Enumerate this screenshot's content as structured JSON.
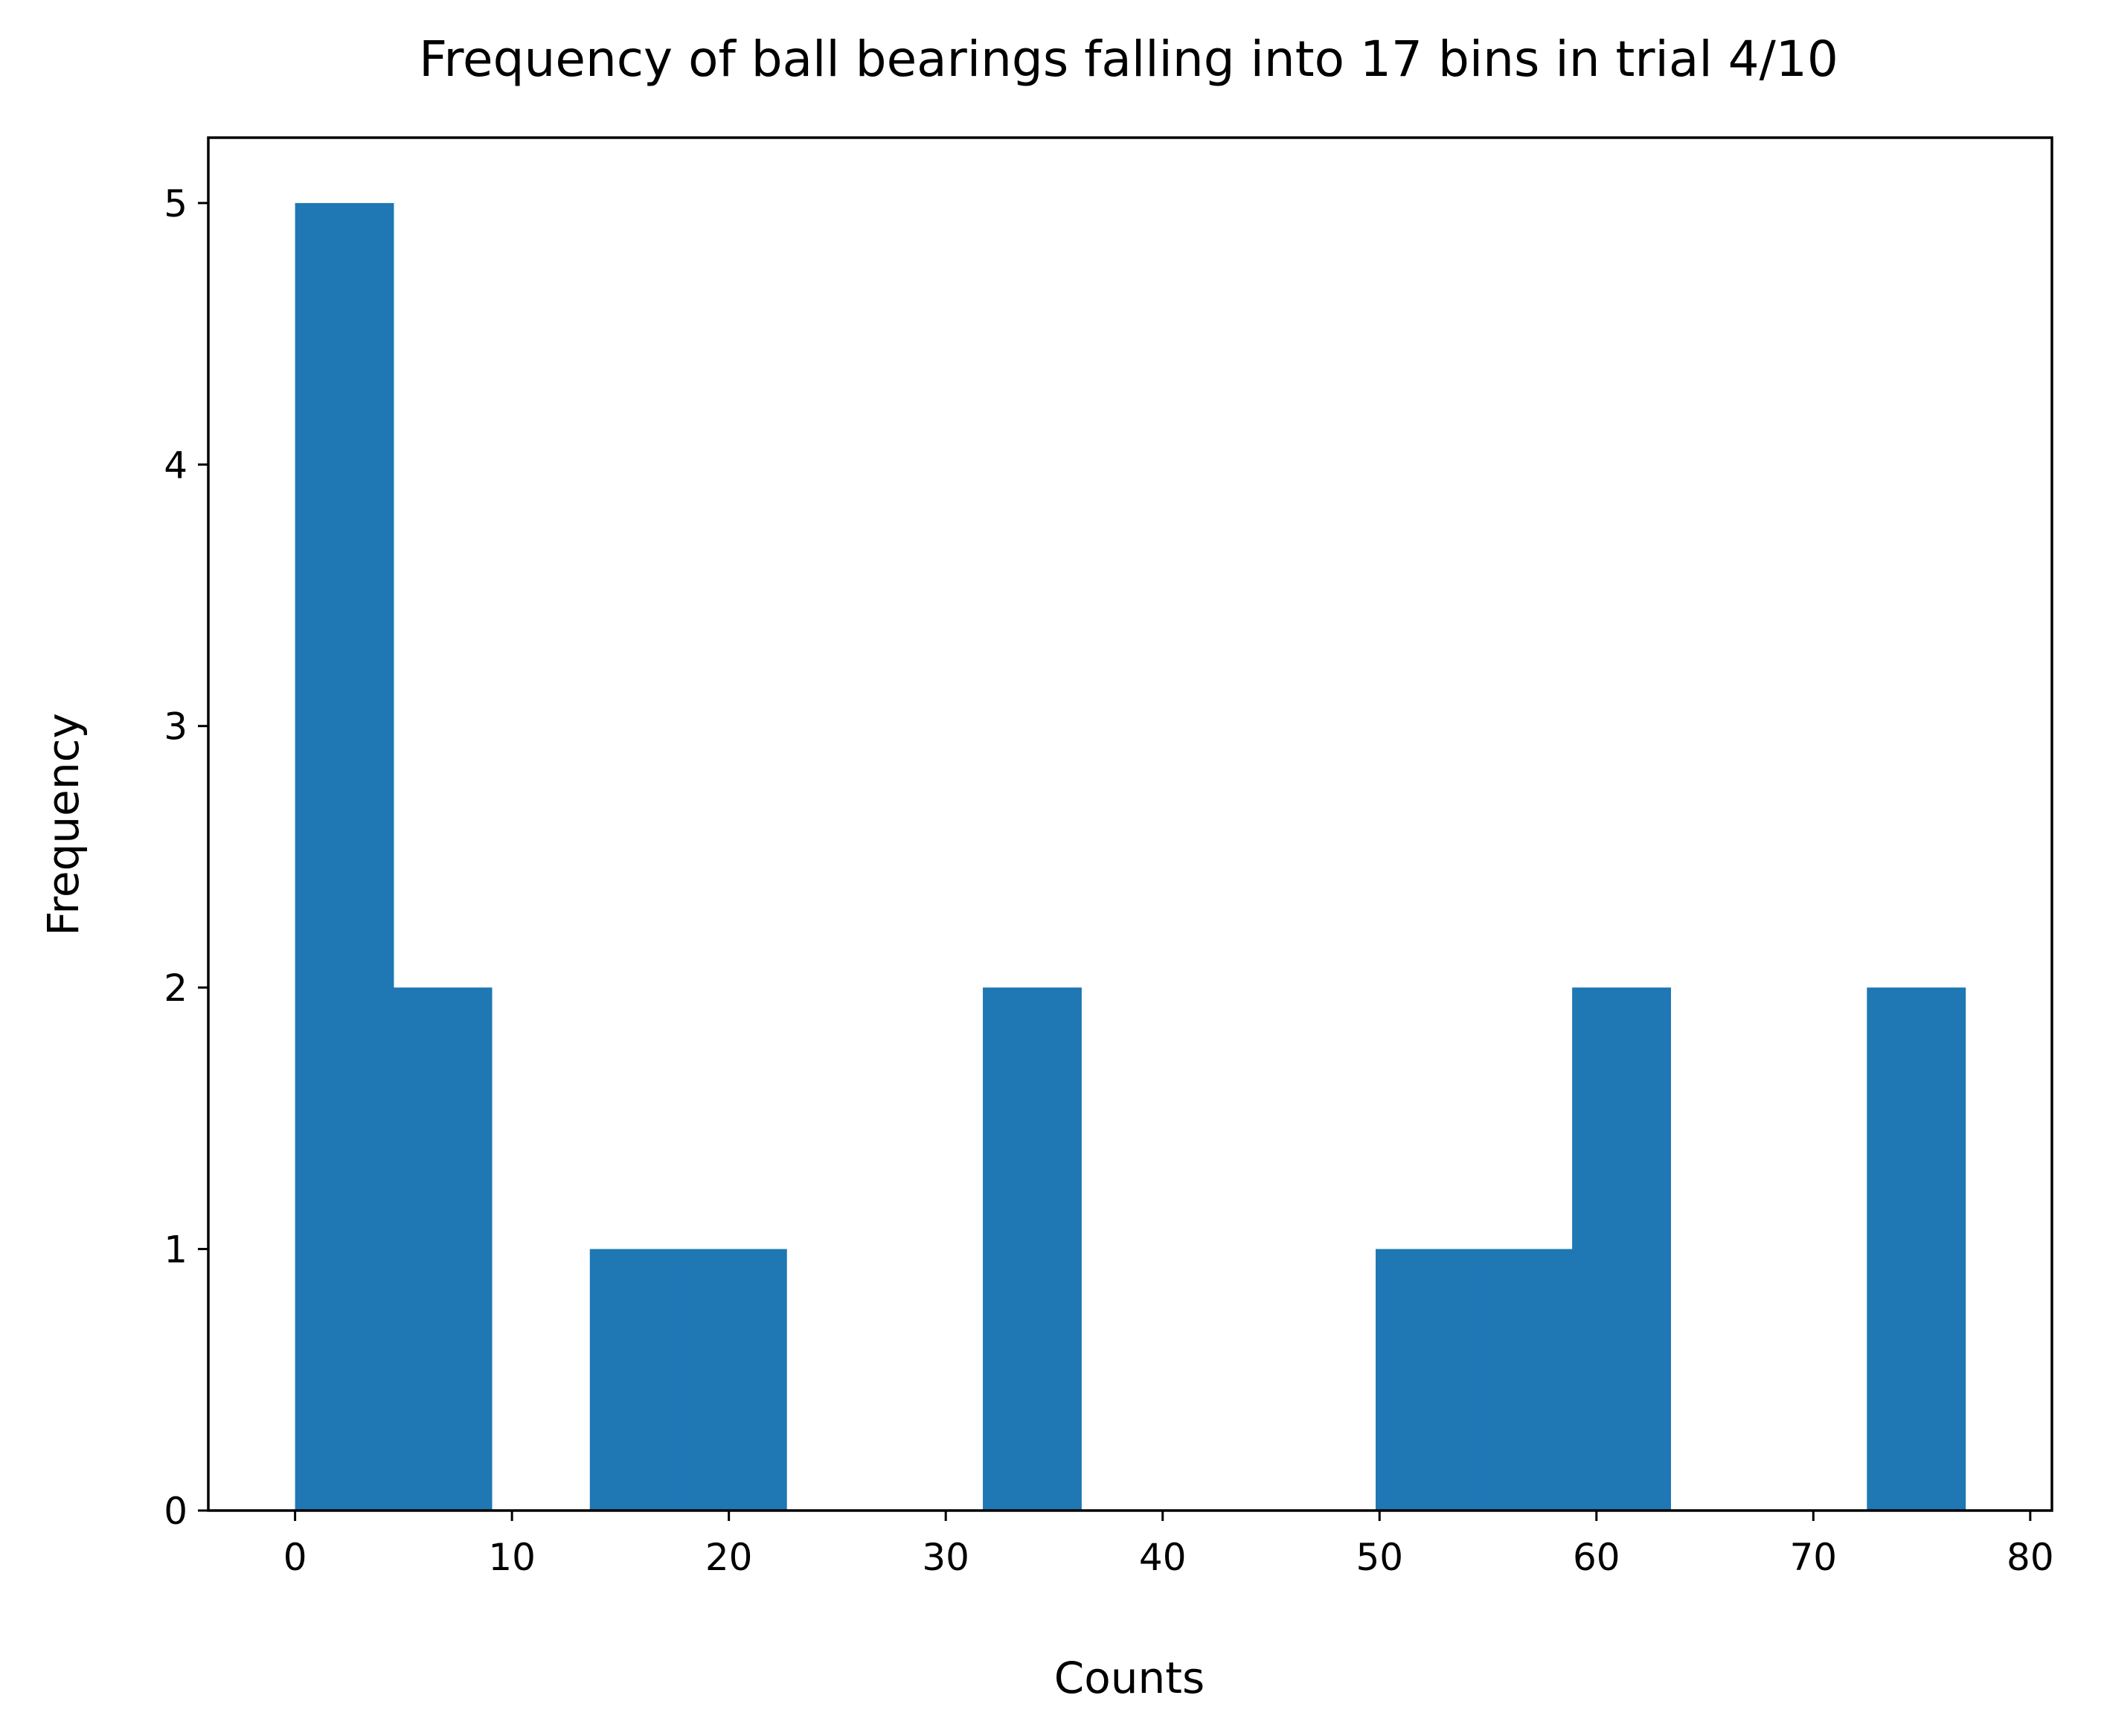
{
  "chart_data": {
    "type": "bar",
    "title": "Frequency of ball bearings falling into 17 bins in trial 4/10",
    "xlabel": "Counts",
    "ylabel": "Frequency",
    "xlim": [
      -4,
      81
    ],
    "ylim": [
      0,
      5.25
    ],
    "xticks": [
      0,
      10,
      20,
      30,
      40,
      50,
      60,
      70,
      80
    ],
    "yticks": [
      0,
      1,
      2,
      3,
      4,
      5
    ],
    "bin_edges": [
      0,
      4.53,
      9.06,
      13.59,
      18.12,
      22.65,
      27.18,
      31.71,
      36.24,
      40.76,
      45.29,
      49.82,
      54.35,
      58.88,
      63.41,
      67.94,
      72.47,
      77.0
    ],
    "values": [
      5,
      2,
      0,
      1,
      1,
      0,
      0,
      2,
      0,
      0,
      0,
      1,
      1,
      2,
      0,
      0,
      2
    ],
    "grid": false,
    "legend": "none",
    "bar_color": "#1f77b4"
  }
}
